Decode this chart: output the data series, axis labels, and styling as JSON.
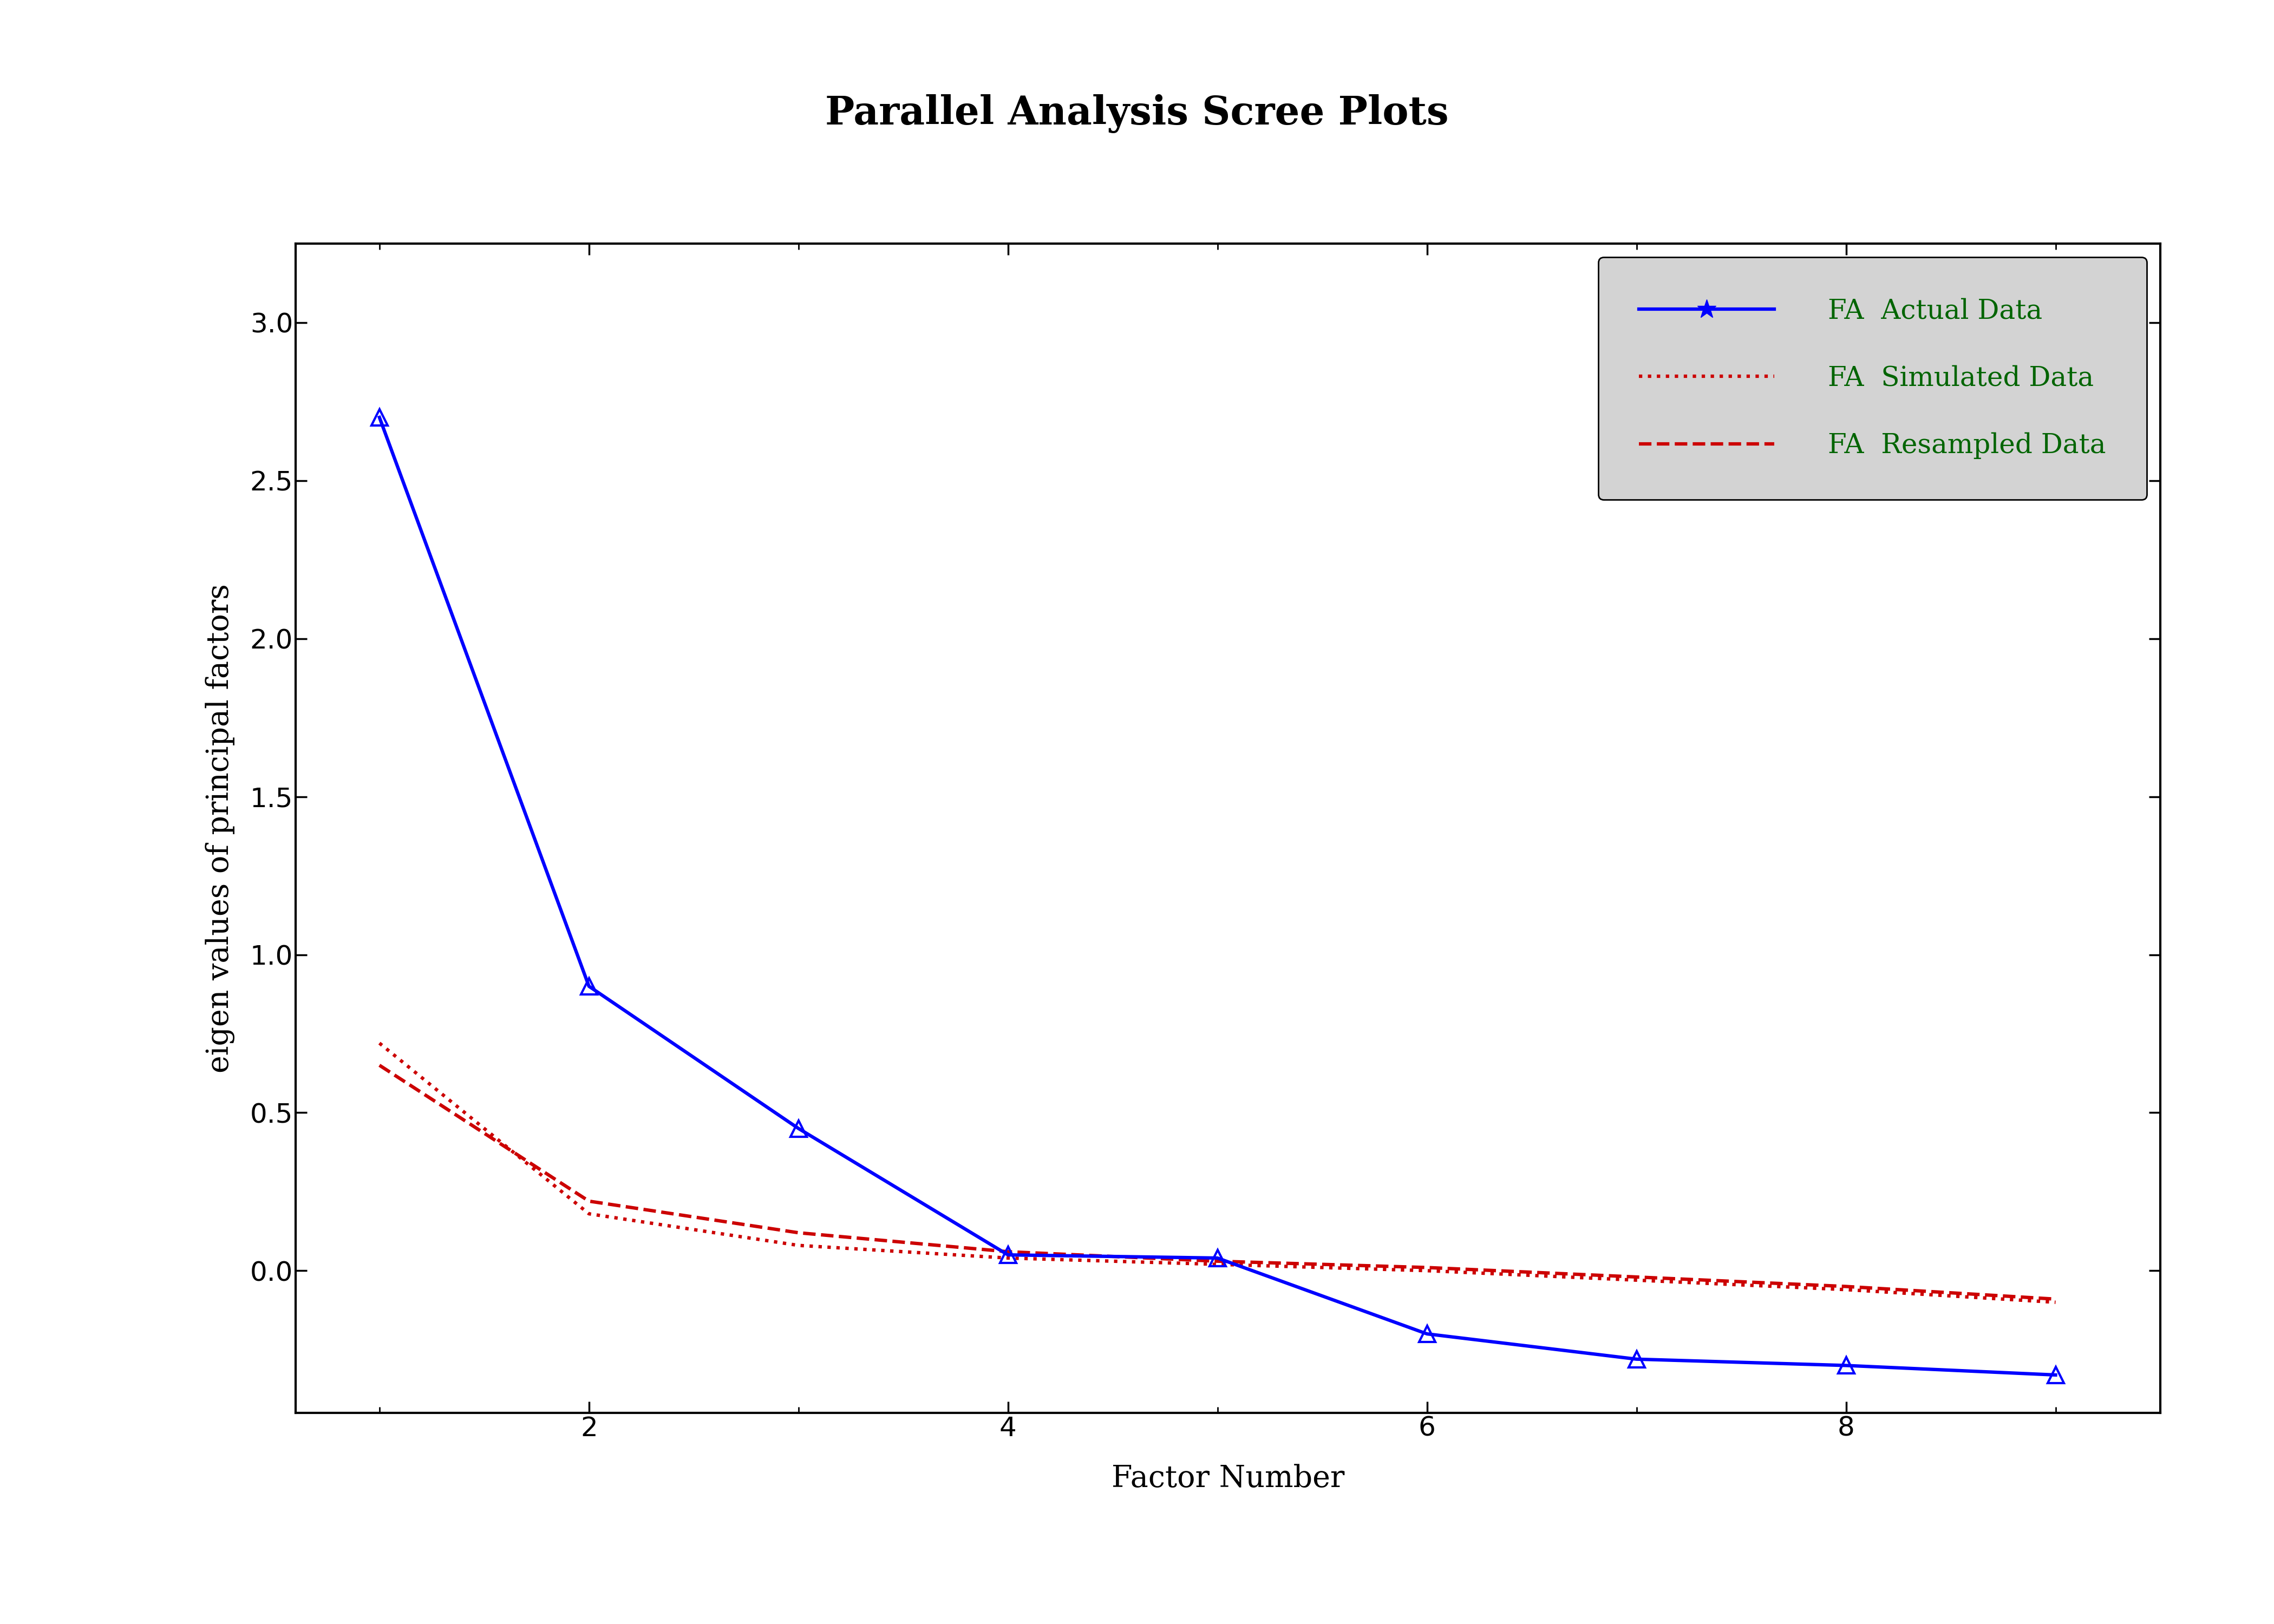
{
  "title": "Parallel Analysis Scree Plots",
  "xlabel": "Factor Number",
  "ylabel": "eigen values of principal factors",
  "background_color": "#ffffff",
  "plot_bg_color": "#ffffff",
  "fa_actual_x": [
    1,
    2,
    3,
    4,
    5,
    6,
    7,
    8,
    9
  ],
  "fa_actual_y": [
    2.7,
    0.9,
    0.45,
    0.05,
    0.04,
    -0.2,
    -0.28,
    -0.3,
    -0.33
  ],
  "fa_simulated_x": [
    1,
    2,
    3,
    4,
    5,
    6,
    7,
    8,
    9
  ],
  "fa_simulated_y": [
    0.72,
    0.18,
    0.08,
    0.04,
    0.02,
    0.0,
    -0.03,
    -0.06,
    -0.1
  ],
  "fa_resampled_x": [
    1,
    2,
    3,
    4,
    5,
    6,
    7,
    8,
    9
  ],
  "fa_resampled_y": [
    0.65,
    0.22,
    0.12,
    0.06,
    0.03,
    0.01,
    -0.02,
    -0.05,
    -0.09
  ],
  "actual_color": "#0000ff",
  "simulated_color": "#cc0000",
  "resampled_color": "#cc0000",
  "legend_bg": "#d3d3d3",
  "legend_text_color": "#006400",
  "title_fontsize": 52,
  "label_fontsize": 40,
  "tick_fontsize": 36,
  "legend_fontsize": 36,
  "xlim": [
    0.6,
    9.5
  ],
  "ylim": [
    -0.45,
    3.25
  ],
  "yticks": [
    0.0,
    0.5,
    1.0,
    1.5,
    2.0,
    2.5,
    3.0
  ],
  "xticks": [
    2,
    4,
    6,
    8
  ],
  "line_width": 4.5,
  "marker_size": 22
}
